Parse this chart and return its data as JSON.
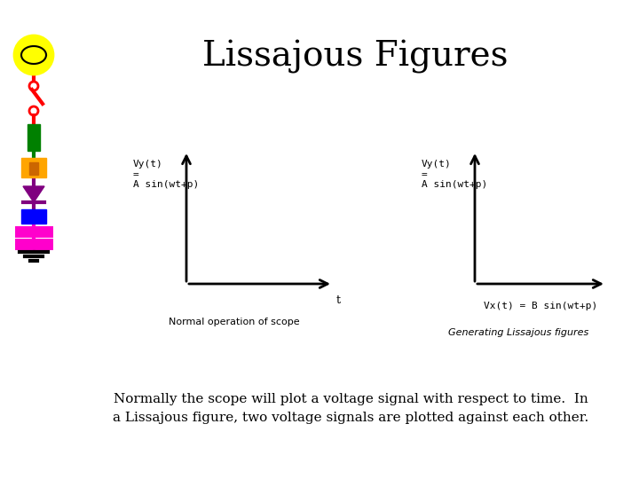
{
  "title": "Lissajous Figures",
  "bg_color": "#ffffff",
  "title_fontsize": 28,
  "body_text_line1": "Normally the scope will plot a voltage signal with respect to time.  In",
  "body_text_line2": "a Lissajous figure, two voltage signals are plotted against each other.",
  "body_fontsize": 11,
  "scope1_label": "Normal operation of scope",
  "scope2_label": "Generating Lissajous figures",
  "scope1_vy_text": "Vy(t)\n=\nA sin(wt+p)",
  "scope2_vy_text": "Vy(t)\n=\nA sin(wt+p)",
  "scope2_vx_text": "Vx(t) = B sin(wt+p)",
  "scope1_t_label": "t"
}
